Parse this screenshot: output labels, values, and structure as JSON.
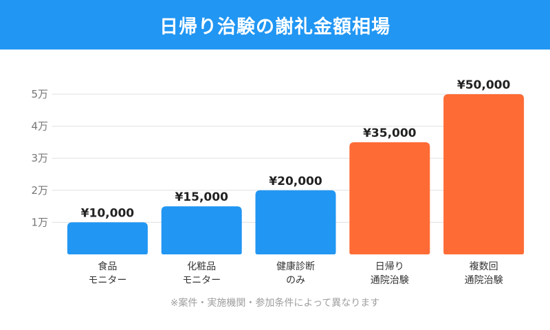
{
  "header": {
    "title": "日帰り治験の謝礼金額相場"
  },
  "footnote": "※案件・実施機関・参加条件によって異なります",
  "colors": {
    "header": "#2196f3",
    "blue_bar": "#2196f3",
    "orange_bar": "#ff6b35",
    "grid": "#e0e0e0",
    "tick_text": "#757575"
  },
  "chart_data": {
    "type": "bar",
    "title": "",
    "xlabel": "",
    "ylabel": "",
    "ylim": [
      0,
      50000
    ],
    "yticks": [
      {
        "value": 10000,
        "label": "1万"
      },
      {
        "value": 20000,
        "label": "2万"
      },
      {
        "value": 30000,
        "label": "3万"
      },
      {
        "value": 40000,
        "label": "4万"
      },
      {
        "value": 50000,
        "label": "5万"
      }
    ],
    "grid": true,
    "categories": [
      [
        "食品",
        "モニター"
      ],
      [
        "化粧品",
        "モニター"
      ],
      [
        "健康診断",
        "のみ"
      ],
      [
        "日帰り",
        "通院治験"
      ],
      [
        "複数回",
        "通院治験"
      ]
    ],
    "values": [
      10000,
      15000,
      20000,
      35000,
      50000
    ],
    "data_labels": [
      "¥10,000",
      "¥15,000",
      "¥20,000",
      "¥35,000",
      "¥50,000"
    ],
    "bar_colors": [
      "#2196f3",
      "#2196f3",
      "#2196f3",
      "#ff6b35",
      "#ff6b35"
    ]
  }
}
